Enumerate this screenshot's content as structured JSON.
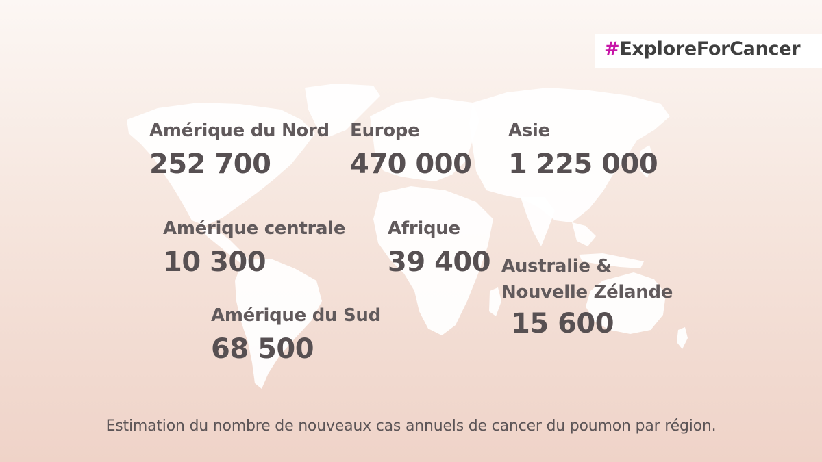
{
  "hashtag": {
    "symbol": "#",
    "text": "ExploreForCancer",
    "symbol_color": "#c716a8"
  },
  "regions": {
    "north_america": {
      "name": "Amérique du Nord",
      "value": "252 700"
    },
    "europe": {
      "name": "Europe",
      "value": "470 000"
    },
    "asia": {
      "name": "Asie",
      "value": "1 225 000"
    },
    "central_america": {
      "name": "Amérique centrale",
      "value": "10 300"
    },
    "africa": {
      "name": "Afrique",
      "value": "39 400"
    },
    "south_america": {
      "name": "Amérique du Sud",
      "value": "68 500"
    },
    "oceania": {
      "name_line1": "Australie &",
      "name_line2": "Nouvelle Zélande",
      "value": "15 600"
    }
  },
  "caption": "Estimation du nombre de nouveaux cas annuels de cancer du poumon par région.",
  "colors": {
    "background_top": "#fcf7f4",
    "background_bottom": "#efd3c8",
    "land": "#ffffff",
    "text": "#575052"
  },
  "icons": [
    "world-map"
  ]
}
